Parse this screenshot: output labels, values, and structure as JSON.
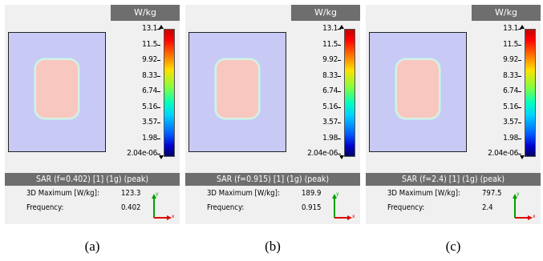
{
  "panels": [
    {
      "unit": "W/kg",
      "scale_labels": [
        "13.1",
        "11.5",
        "9.92",
        "8.33",
        "6.74",
        "5.16",
        "3.57",
        "1.98",
        "2.04e-06"
      ],
      "result_title": "SAR (f=0.402) [1] (1g) (peak)",
      "max_label": "3D Maximum [W/kg]:",
      "max_value": "123.3",
      "freq_label": "Frequency:",
      "freq_value": "0.402",
      "axis_y": "y",
      "axis_x": "x",
      "caption": "(a)"
    },
    {
      "unit": "W/kg",
      "scale_labels": [
        "13.1",
        "11.5",
        "9.92",
        "8.33",
        "6.74",
        "5.16",
        "3.57",
        "1.98",
        "2.04e-06"
      ],
      "result_title": "SAR (f=0.915) [1] (1g) (peak)",
      "max_label": "3D Maximum [W/kg]:",
      "max_value": "189.9",
      "freq_label": "Frequency:",
      "freq_value": "0.915",
      "axis_y": "y",
      "axis_x": "x",
      "caption": "(b)"
    },
    {
      "unit": "W/kg",
      "scale_labels": [
        "13.1",
        "11.5",
        "9.92",
        "8.33",
        "6.74",
        "5.16",
        "3.57",
        "1.98",
        "2.04e-06"
      ],
      "result_title": "SAR (f=2.4) [1] (1g) (peak)",
      "max_label": "3D Maximum [W/kg]:",
      "max_value": "797.5",
      "freq_label": "Frequency:",
      "freq_value": "2.4",
      "axis_y": "y",
      "axis_x": "x",
      "caption": "(c)"
    }
  ],
  "colors": {
    "header_bg": "#6e6e6e",
    "panel_bg": "#f0f0f0",
    "viewport_bg": "#c9c9f5",
    "hotspot": "#f8c8c0",
    "axis_y": "#00a000",
    "axis_x": "#e00000"
  }
}
